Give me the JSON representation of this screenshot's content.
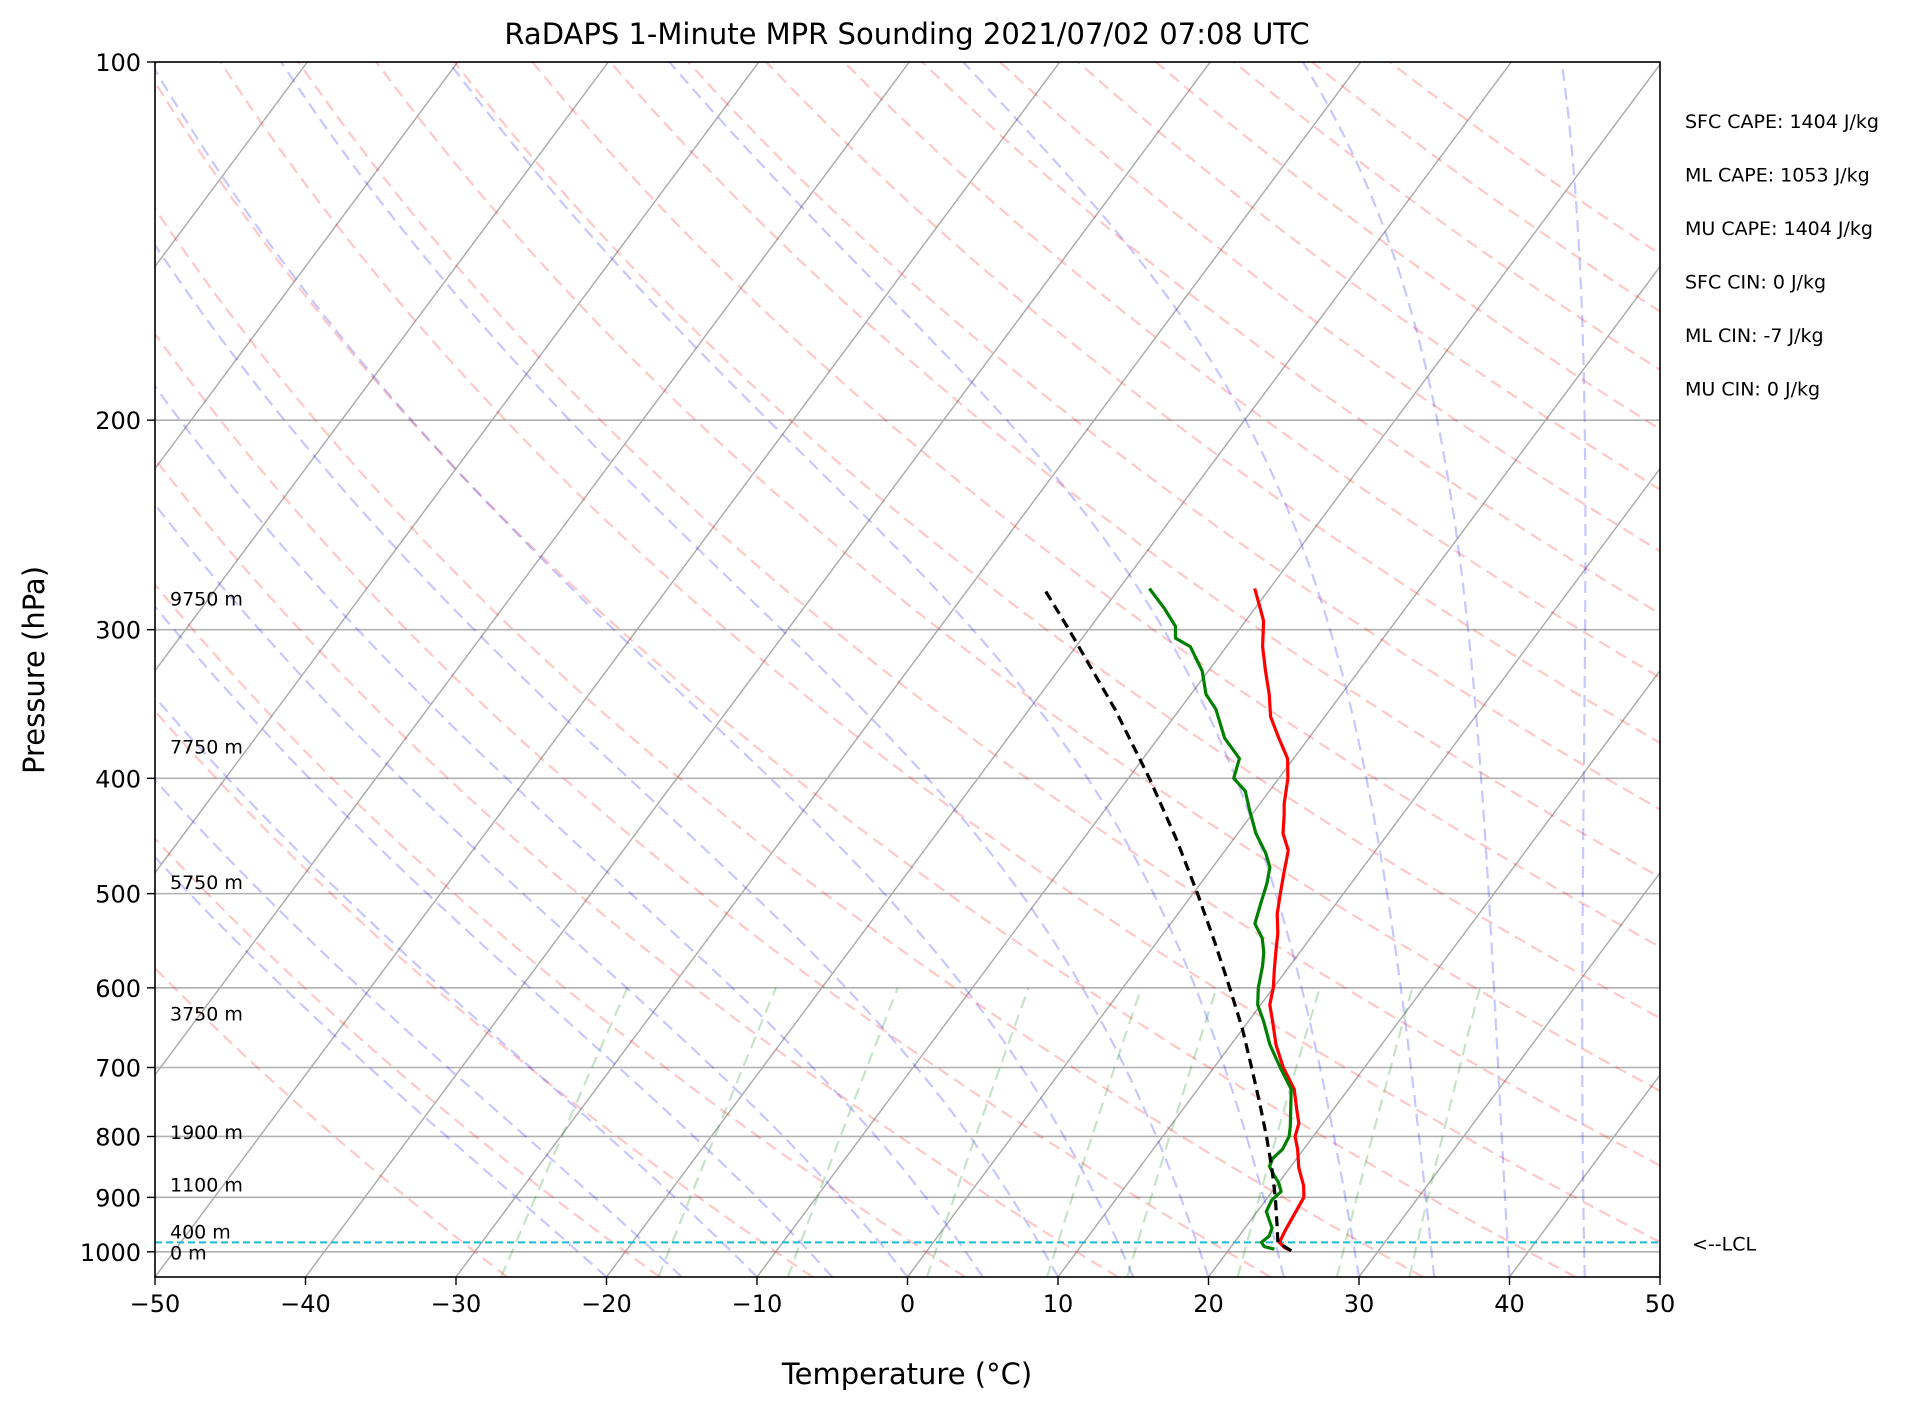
{
  "chart_data": {
    "type": "line",
    "title": "RaDAPS 1-Minute MPR Sounding 2021/07/02 07:08 UTC",
    "xlabel": "Temperature (°C)",
    "ylabel": "Pressure (hPa)",
    "xlim": [
      -50,
      50
    ],
    "ylim": [
      1050,
      100
    ],
    "y_scale": "log",
    "skew": "skew-T",
    "grid": true,
    "x_ticks": [
      "−50",
      "−40",
      "−30",
      "−20",
      "−10",
      "0",
      "10",
      "20",
      "30",
      "40",
      "50"
    ],
    "y_ticks": [
      {
        "p": 100,
        "label": "100"
      },
      {
        "p": 200,
        "label": "200"
      },
      {
        "p": 300,
        "label": "300"
      },
      {
        "p": 400,
        "label": "400"
      },
      {
        "p": 500,
        "label": "500"
      },
      {
        "p": 600,
        "label": "600"
      },
      {
        "p": 700,
        "label": "700"
      },
      {
        "p": 800,
        "label": "800"
      },
      {
        "p": 900,
        "label": "900"
      },
      {
        "p": 1000,
        "label": "1000"
      }
    ],
    "height_labels": [
      {
        "p": 283,
        "label": "9750 m"
      },
      {
        "p": 377,
        "label": "7750 m"
      },
      {
        "p": 490,
        "label": "5750 m"
      },
      {
        "p": 632,
        "label": "3750 m"
      },
      {
        "p": 795,
        "label": "1900 m"
      },
      {
        "p": 880,
        "label": "1100 m"
      },
      {
        "p": 963,
        "label": "400 m"
      },
      {
        "p": 1003,
        "label": "0 m"
      }
    ],
    "lcl": {
      "p": 982,
      "label": "<--LCL",
      "color": "#17becf"
    },
    "stats": [
      "SFC CAPE: 1404 J/kg",
      "ML CAPE: 1053 J/kg",
      "MU CAPE: 1404 J/kg",
      "SFC CIN: 0 J/kg",
      "ML CIN: -7 J/kg",
      "MU CIN: 0 J/kg"
    ],
    "series": [
      {
        "key": "temperature",
        "color": "#ff0000",
        "points": [
          {
            "p": 998,
            "t": 24.2
          },
          {
            "p": 992,
            "t": 23.6
          },
          {
            "p": 982,
            "t": 23.0
          },
          {
            "p": 960,
            "t": 22.8
          },
          {
            "p": 930,
            "t": 22.6
          },
          {
            "p": 900,
            "t": 22.4
          },
          {
            "p": 880,
            "t": 21.8
          },
          {
            "p": 850,
            "t": 20.6
          },
          {
            "p": 820,
            "t": 19.6
          },
          {
            "p": 800,
            "t": 18.8
          },
          {
            "p": 780,
            "t": 18.4
          },
          {
            "p": 760,
            "t": 17.6
          },
          {
            "p": 730,
            "t": 16.4
          },
          {
            "p": 700,
            "t": 14.6
          },
          {
            "p": 670,
            "t": 13.0
          },
          {
            "p": 640,
            "t": 11.6
          },
          {
            "p": 620,
            "t": 10.6
          },
          {
            "p": 600,
            "t": 10.0
          },
          {
            "p": 580,
            "t": 9.2
          },
          {
            "p": 560,
            "t": 8.4
          },
          {
            "p": 540,
            "t": 7.6
          },
          {
            "p": 520,
            "t": 6.6
          },
          {
            "p": 500,
            "t": 5.8
          },
          {
            "p": 480,
            "t": 5.0
          },
          {
            "p": 460,
            "t": 4.2
          },
          {
            "p": 445,
            "t": 3.0
          },
          {
            "p": 430,
            "t": 2.2
          },
          {
            "p": 420,
            "t": 1.6
          },
          {
            "p": 400,
            "t": 0.6
          },
          {
            "p": 385,
            "t": -0.4
          },
          {
            "p": 370,
            "t": -2.0
          },
          {
            "p": 355,
            "t": -3.6
          },
          {
            "p": 340,
            "t": -4.8
          },
          {
            "p": 325,
            "t": -6.2
          },
          {
            "p": 310,
            "t": -7.6
          },
          {
            "p": 295,
            "t": -8.8
          },
          {
            "p": 285,
            "t": -10.0
          },
          {
            "p": 277,
            "t": -11.0
          }
        ]
      },
      {
        "key": "dewpoint",
        "color": "#008000",
        "points": [
          {
            "p": 995,
            "t": 23.0
          },
          {
            "p": 990,
            "t": 22.2
          },
          {
            "p": 982,
            "t": 21.8
          },
          {
            "p": 970,
            "t": 22.0
          },
          {
            "p": 955,
            "t": 21.8
          },
          {
            "p": 940,
            "t": 21.2
          },
          {
            "p": 925,
            "t": 20.6
          },
          {
            "p": 905,
            "t": 20.4
          },
          {
            "p": 890,
            "t": 20.6
          },
          {
            "p": 875,
            "t": 20.0
          },
          {
            "p": 860,
            "t": 19.2
          },
          {
            "p": 848,
            "t": 18.6
          },
          {
            "p": 835,
            "t": 18.4
          },
          {
            "p": 820,
            "t": 18.6
          },
          {
            "p": 800,
            "t": 18.4
          },
          {
            "p": 785,
            "t": 18.0
          },
          {
            "p": 760,
            "t": 17.2
          },
          {
            "p": 730,
            "t": 16.2
          },
          {
            "p": 700,
            "t": 14.4
          },
          {
            "p": 670,
            "t": 12.6
          },
          {
            "p": 640,
            "t": 11.0
          },
          {
            "p": 620,
            "t": 9.8
          },
          {
            "p": 600,
            "t": 9.0
          },
          {
            "p": 575,
            "t": 8.2
          },
          {
            "p": 560,
            "t": 7.6
          },
          {
            "p": 545,
            "t": 6.8
          },
          {
            "p": 530,
            "t": 5.6
          },
          {
            "p": 510,
            "t": 5.0
          },
          {
            "p": 490,
            "t": 4.4
          },
          {
            "p": 475,
            "t": 3.8
          },
          {
            "p": 462,
            "t": 2.8
          },
          {
            "p": 445,
            "t": 1.2
          },
          {
            "p": 425,
            "t": -0.4
          },
          {
            "p": 410,
            "t": -1.6
          },
          {
            "p": 400,
            "t": -3.0
          },
          {
            "p": 385,
            "t": -3.6
          },
          {
            "p": 370,
            "t": -5.6
          },
          {
            "p": 350,
            "t": -7.6
          },
          {
            "p": 340,
            "t": -9.0
          },
          {
            "p": 325,
            "t": -10.4
          },
          {
            "p": 310,
            "t": -12.4
          },
          {
            "p": 305,
            "t": -13.8
          },
          {
            "p": 298,
            "t": -14.4
          },
          {
            "p": 288,
            "t": -16.0
          },
          {
            "p": 277,
            "t": -18.0
          }
        ]
      },
      {
        "key": "parcel",
        "color": "#000000",
        "dashed": true,
        "points": [
          {
            "p": 998,
            "t": 24.2
          },
          {
            "p": 982,
            "t": 22.9
          },
          {
            "p": 950,
            "t": 22.0
          },
          {
            "p": 900,
            "t": 20.5
          },
          {
            "p": 850,
            "t": 18.8
          },
          {
            "p": 800,
            "t": 16.9
          },
          {
            "p": 750,
            "t": 14.8
          },
          {
            "p": 700,
            "t": 12.5
          },
          {
            "p": 650,
            "t": 10.0
          },
          {
            "p": 600,
            "t": 7.1
          },
          {
            "p": 550,
            "t": 3.9
          },
          {
            "p": 500,
            "t": 0.3
          },
          {
            "p": 450,
            "t": -3.8
          },
          {
            "p": 400,
            "t": -8.6
          },
          {
            "p": 350,
            "t": -14.3
          },
          {
            "p": 300,
            "t": -21.3
          },
          {
            "p": 277,
            "t": -25.0
          }
        ]
      }
    ]
  }
}
